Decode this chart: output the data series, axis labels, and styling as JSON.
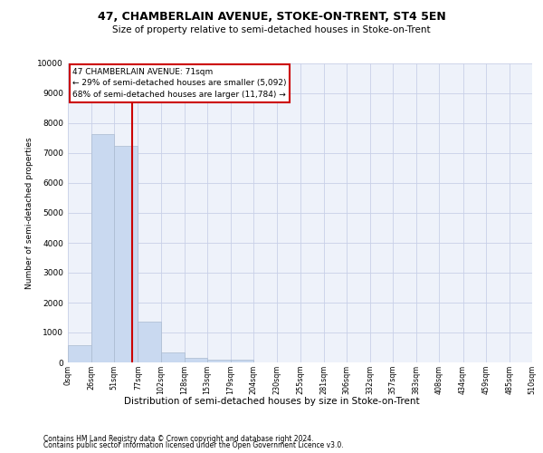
{
  "title": "47, CHAMBERLAIN AVENUE, STOKE-ON-TRENT, ST4 5EN",
  "subtitle": "Size of property relative to semi-detached houses in Stoke-on-Trent",
  "xlabel": "Distribution of semi-detached houses by size in Stoke-on-Trent",
  "ylabel": "Number of semi-detached properties",
  "footer1": "Contains HM Land Registry data © Crown copyright and database right 2024.",
  "footer2": "Contains public sector information licensed under the Open Government Licence v3.0.",
  "annotation_title": "47 CHAMBERLAIN AVENUE: 71sqm",
  "annotation_line2": "← 29% of semi-detached houses are smaller (5,092)",
  "annotation_line3": "68% of semi-detached houses are larger (11,784) →",
  "property_size": 71,
  "bar_labels": [
    "0sqm",
    "26sqm",
    "51sqm",
    "77sqm",
    "102sqm",
    "128sqm",
    "153sqm",
    "179sqm",
    "204sqm",
    "230sqm",
    "255sqm",
    "281sqm",
    "306sqm",
    "332sqm",
    "357sqm",
    "383sqm",
    "408sqm",
    "434sqm",
    "459sqm",
    "485sqm",
    "510sqm"
  ],
  "bar_values": [
    570,
    7650,
    7250,
    1350,
    320,
    160,
    100,
    80,
    0,
    0,
    0,
    0,
    0,
    0,
    0,
    0,
    0,
    0,
    0,
    0
  ],
  "bar_color": "#c9d9f0",
  "bar_edge_color": "#aabbd0",
  "vline_x": 71,
  "vline_color": "#cc0000",
  "ylim": [
    0,
    10000
  ],
  "yticks": [
    0,
    1000,
    2000,
    3000,
    4000,
    5000,
    6000,
    7000,
    8000,
    9000,
    10000
  ],
  "bg_color": "#eef2fa",
  "grid_color": "#c8d0e8",
  "annotation_box_color": "#cc0000",
  "bin_edges": [
    0,
    26,
    51,
    77,
    102,
    128,
    153,
    179,
    204,
    230,
    255,
    281,
    306,
    332,
    357,
    383,
    408,
    434,
    459,
    485,
    510
  ]
}
